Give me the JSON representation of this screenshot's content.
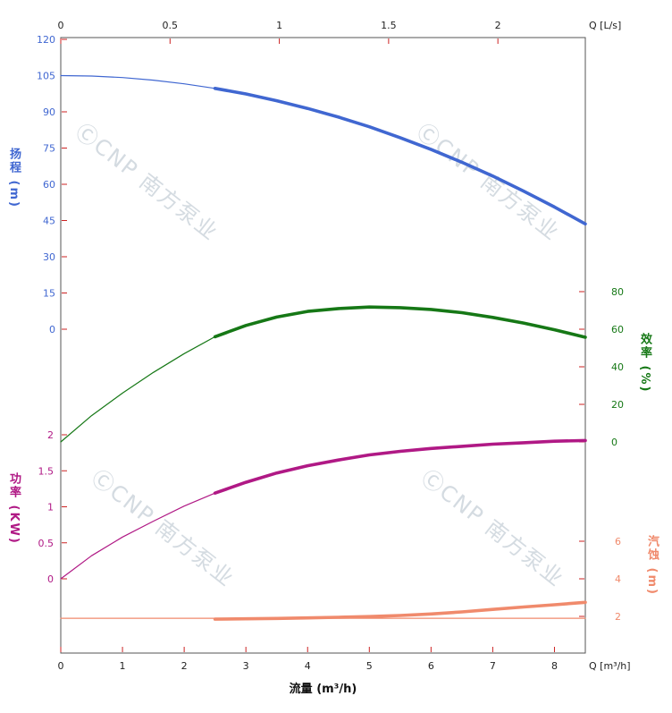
{
  "watermark": {
    "text": "ⒸCNP 南方泵业",
    "color": "#d4dbe1"
  },
  "tick_color": "#cc2222",
  "chart_data": {
    "type": "line",
    "title": "",
    "x_axis_bottom": {
      "label": "Q [m³/h]",
      "title": "流量 (m³/h)",
      "min": 0,
      "max": 8.5,
      "ticks": [
        0,
        1,
        2,
        3,
        4,
        5,
        6,
        7,
        8
      ]
    },
    "x_axis_top": {
      "label": "Q [L/s]",
      "min": 0,
      "max": 2.4,
      "ticks": [
        0,
        0.5,
        1,
        1.5,
        2
      ]
    },
    "y_axes": [
      {
        "id": "head",
        "title": "扬程 (m)",
        "unit": "m",
        "color": "#4067d1",
        "min": 0,
        "max": 120,
        "ticks": [
          120,
          105,
          90,
          75,
          60,
          45,
          30,
          15,
          0
        ]
      },
      {
        "id": "efficiency",
        "title": "效率 (%)",
        "unit": "%",
        "color": "#167816",
        "min": 0,
        "max": 80,
        "ticks": [
          80,
          60,
          40,
          20,
          0
        ]
      },
      {
        "id": "power",
        "title": "功率 (KW)",
        "unit": "KW",
        "color": "#b01985",
        "min": 0,
        "max": 2,
        "ticks": [
          2,
          1.5,
          1,
          0.5,
          0
        ]
      },
      {
        "id": "npsh",
        "title": "汽蚀 (m)",
        "unit": "m",
        "color": "#f08a6c",
        "min": 2,
        "max": 6,
        "ticks": [
          6,
          4,
          2
        ]
      }
    ],
    "duty_range_start": 2.5,
    "layout": {
      "grid": false,
      "legend": false,
      "background": "#ffffff"
    },
    "series": [
      {
        "name": "head",
        "axis": "head",
        "color": "#4067d1",
        "weight": "split",
        "x": [
          0,
          0.5,
          1,
          1.5,
          2,
          2.5,
          3,
          3.5,
          4,
          4.5,
          5,
          5.5,
          6,
          6.5,
          7,
          7.5,
          8,
          8.5
        ],
        "values": [
          105,
          104.8,
          104.2,
          103.1,
          101.6,
          99.7,
          97.4,
          94.6,
          91.4,
          87.8,
          83.8,
          79.3,
          74.4,
          69.1,
          63.4,
          57.2,
          50.6,
          43.6
        ]
      },
      {
        "name": "efficiency",
        "axis": "efficiency",
        "color": "#167816",
        "weight": "split",
        "x": [
          0,
          0.5,
          1,
          1.5,
          2,
          2.5,
          3,
          3.5,
          4,
          4.5,
          5,
          5.5,
          6,
          6.5,
          7,
          7.5,
          8,
          8.5
        ],
        "values": [
          0,
          14,
          26,
          37,
          47,
          56,
          62,
          66.5,
          69.5,
          71,
          71.8,
          71.5,
          70.5,
          68.8,
          66.3,
          63.3,
          59.7,
          55.7
        ]
      },
      {
        "name": "power",
        "axis": "power",
        "color": "#b01985",
        "weight": "split",
        "x": [
          0,
          0.5,
          1,
          1.5,
          2,
          2.5,
          3,
          3.5,
          4,
          4.5,
          5,
          5.5,
          6,
          6.5,
          7,
          7.5,
          8,
          8.5
        ],
        "values": [
          0,
          0.32,
          0.58,
          0.8,
          1.01,
          1.19,
          1.34,
          1.47,
          1.57,
          1.65,
          1.72,
          1.77,
          1.81,
          1.84,
          1.87,
          1.89,
          1.91,
          1.92
        ]
      },
      {
        "name": "npsh-reference",
        "axis": "npsh",
        "color": "#f08a6c",
        "weight": "thin",
        "x": [
          0,
          0.5,
          1,
          1.5,
          2,
          2.5,
          3,
          3.5,
          4,
          4.5,
          5,
          5.5,
          6,
          6.5,
          7,
          7.5,
          8,
          8.5
        ],
        "values": [
          1.9,
          1.9,
          1.9,
          1.9,
          1.9,
          1.9,
          1.9,
          1.9,
          1.9,
          1.9,
          1.9,
          1.9,
          1.9,
          1.9,
          1.9,
          1.9,
          1.9,
          1.9
        ]
      },
      {
        "name": "npsh",
        "axis": "npsh",
        "color": "#f08a6c",
        "weight": "thick",
        "x": [
          2.5,
          3,
          3.5,
          4,
          4.5,
          5,
          5.5,
          6,
          6.5,
          7,
          7.5,
          8,
          8.5
        ],
        "values": [
          1.85,
          1.87,
          1.89,
          1.92,
          1.95,
          1.99,
          2.05,
          2.13,
          2.24,
          2.37,
          2.5,
          2.62,
          2.75
        ]
      }
    ]
  }
}
